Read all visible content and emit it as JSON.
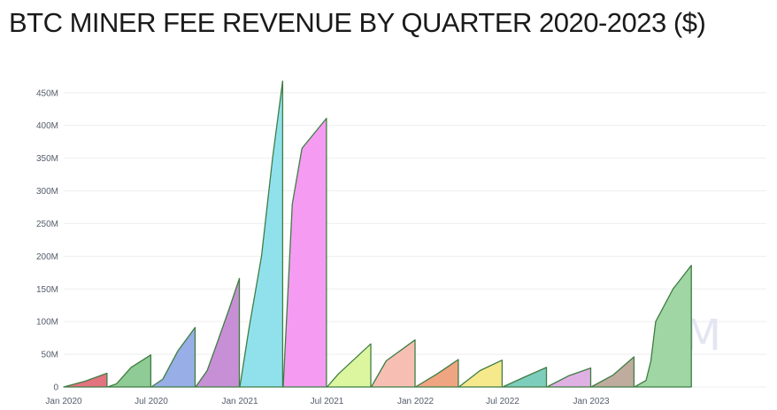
{
  "title": "BTC MINER FEE REVENUE BY QUARTER 2020-2023 ($)",
  "watermark": "CM",
  "chart_data": {
    "type": "area",
    "title": "BTC MINER FEE REVENUE BY QUARTER 2020-2023 ($)",
    "xlabel": "",
    "ylabel": "",
    "ylim": [
      0,
      470000000
    ],
    "x_range": [
      "2020-01-01",
      "2023-12-31"
    ],
    "grid": true,
    "legend": "none",
    "y_ticks": [
      {
        "value": 0,
        "label": "0"
      },
      {
        "value": 50000000,
        "label": "50M"
      },
      {
        "value": 100000000,
        "label": "100M"
      },
      {
        "value": 150000000,
        "label": "150M"
      },
      {
        "value": 200000000,
        "label": "200M"
      },
      {
        "value": 250000000,
        "label": "250M"
      },
      {
        "value": 300000000,
        "label": "300M"
      },
      {
        "value": 350000000,
        "label": "350M"
      },
      {
        "value": 400000000,
        "label": "400M"
      },
      {
        "value": 450000000,
        "label": "450M"
      }
    ],
    "x_ticks": [
      {
        "date": "2020-01-01",
        "label": "Jan 2020"
      },
      {
        "date": "2020-07-01",
        "label": "Jul 2020"
      },
      {
        "date": "2021-01-01",
        "label": "Jan 2021"
      },
      {
        "date": "2021-07-01",
        "label": "Jul 2021"
      },
      {
        "date": "2022-01-01",
        "label": "Jan 2022"
      },
      {
        "date": "2022-07-01",
        "label": "Jul 2022"
      },
      {
        "date": "2023-01-01",
        "label": "Jan 2023"
      }
    ],
    "series": [
      {
        "color": "#e3737f",
        "points": [
          [
            "2020-01-01",
            0
          ],
          [
            "2020-02-15",
            9000000
          ],
          [
            "2020-03-31",
            21000000
          ]
        ]
      },
      {
        "color": "#8fcb94",
        "points": [
          [
            "2020-04-01",
            0
          ],
          [
            "2020-04-20",
            5000000
          ],
          [
            "2020-05-20",
            30000000
          ],
          [
            "2020-06-30",
            49000000
          ]
        ]
      },
      {
        "color": "#97aee6",
        "points": [
          [
            "2020-07-01",
            0
          ],
          [
            "2020-07-25",
            12000000
          ],
          [
            "2020-08-25",
            55000000
          ],
          [
            "2020-09-30",
            91000000
          ]
        ]
      },
      {
        "color": "#c78fd6",
        "points": [
          [
            "2020-10-01",
            0
          ],
          [
            "2020-10-25",
            25000000
          ],
          [
            "2020-11-15",
            68000000
          ],
          [
            "2020-12-10",
            120000000
          ],
          [
            "2020-12-31",
            166000000
          ]
        ]
      },
      {
        "color": "#91e1ed",
        "points": [
          [
            "2021-01-01",
            0
          ],
          [
            "2021-01-20",
            90000000
          ],
          [
            "2021-02-15",
            200000000
          ],
          [
            "2021-03-10",
            350000000
          ],
          [
            "2021-03-31",
            468000000
          ]
        ]
      },
      {
        "color": "#f59bf2",
        "points": [
          [
            "2021-04-01",
            0
          ],
          [
            "2021-04-20",
            280000000
          ],
          [
            "2021-05-10",
            365000000
          ],
          [
            "2021-06-30",
            411000000
          ]
        ]
      },
      {
        "color": "#dcf6a0",
        "points": [
          [
            "2021-07-01",
            0
          ],
          [
            "2021-07-25",
            20000000
          ],
          [
            "2021-09-30",
            66000000
          ]
        ]
      },
      {
        "color": "#f7bfb4",
        "points": [
          [
            "2021-10-01",
            0
          ],
          [
            "2021-11-01",
            40000000
          ],
          [
            "2021-12-31",
            72000000
          ]
        ]
      },
      {
        "color": "#f0a582",
        "points": [
          [
            "2022-01-01",
            0
          ],
          [
            "2022-02-15",
            20000000
          ],
          [
            "2022-03-31",
            42000000
          ]
        ]
      },
      {
        "color": "#f6e98c",
        "points": [
          [
            "2022-04-01",
            0
          ],
          [
            "2022-05-15",
            25000000
          ],
          [
            "2022-06-30",
            41000000
          ]
        ]
      },
      {
        "color": "#7dcdbd",
        "points": [
          [
            "2022-07-01",
            0
          ],
          [
            "2022-08-15",
            15000000
          ],
          [
            "2022-09-30",
            30000000
          ]
        ]
      },
      {
        "color": "#deb0e3",
        "points": [
          [
            "2022-10-01",
            0
          ],
          [
            "2022-11-15",
            17000000
          ],
          [
            "2022-12-31",
            29000000
          ]
        ]
      },
      {
        "color": "#c0ac9f",
        "points": [
          [
            "2023-01-01",
            0
          ],
          [
            "2023-02-15",
            18000000
          ],
          [
            "2023-03-31",
            46000000
          ]
        ]
      },
      {
        "color": "#9fd6a3",
        "points": [
          [
            "2023-04-01",
            0
          ],
          [
            "2023-04-25",
            10000000
          ],
          [
            "2023-05-05",
            40000000
          ],
          [
            "2023-05-15",
            100000000
          ],
          [
            "2023-06-20",
            150000000
          ],
          [
            "2023-07-28",
            186000000
          ]
        ]
      }
    ]
  }
}
